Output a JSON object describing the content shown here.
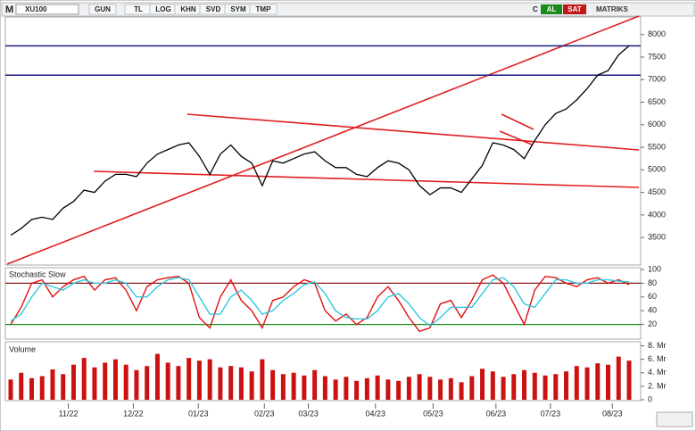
{
  "toolbar": {
    "logo": "M",
    "symbol": "XU100",
    "buttons": [
      "GUN",
      "TL",
      "LOG",
      "KHN",
      "SVD",
      "SYM",
      "TMP"
    ],
    "c": "C",
    "buy": "AL",
    "sell": "SAT",
    "brand": "MATRIKS"
  },
  "chart_data": [
    {
      "type": "line",
      "name": "price",
      "color": "#000000",
      "ylim": [
        2890,
        8390
      ],
      "yticks": [
        3500,
        4000,
        4500,
        5000,
        5500,
        6000,
        6500,
        7000,
        7500,
        8000
      ],
      "hlines": [
        7750,
        7100
      ],
      "hline_color": "#1a1a80",
      "series": [
        {
          "color": "#000000",
          "values": [
            3550,
            3700,
            3900,
            3950,
            3900,
            4150,
            4300,
            4550,
            4500,
            4750,
            4900,
            4900,
            4850,
            5150,
            5350,
            5450,
            5550,
            5600,
            5300,
            4900,
            5350,
            5550,
            5300,
            5150,
            4650,
            5200,
            5150,
            5250,
            5350,
            5400,
            5200,
            5050,
            5050,
            4900,
            4850,
            5050,
            5200,
            5150,
            5000,
            4650,
            4450,
            4600,
            4600,
            4500,
            4800,
            5100,
            5600,
            5550,
            5450,
            5250,
            5650,
            6000,
            6250,
            6350,
            6550,
            6800,
            7100,
            7200,
            7550,
            7750
          ]
        }
      ]
    },
    {
      "type": "line",
      "name": "stochastic",
      "title": "Stochastic Slow",
      "ylim": [
        0,
        100
      ],
      "yticks": [
        20,
        40,
        60,
        80,
        100
      ],
      "levels": [
        {
          "value": 80,
          "color": "#8b1a1a"
        },
        {
          "value": 20,
          "color": "#1e8b1e"
        }
      ],
      "series": [
        {
          "color": "#e01010",
          "values": [
            20,
            45,
            80,
            85,
            60,
            75,
            85,
            90,
            70,
            85,
            88,
            70,
            40,
            75,
            85,
            88,
            90,
            80,
            30,
            15,
            60,
            85,
            55,
            40,
            15,
            55,
            60,
            75,
            85,
            80,
            40,
            25,
            35,
            20,
            30,
            60,
            75,
            55,
            30,
            10,
            15,
            50,
            55,
            30,
            55,
            85,
            92,
            80,
            50,
            20,
            70,
            90,
            88,
            80,
            75,
            85,
            88,
            80,
            85,
            78
          ]
        },
        {
          "color": "#30c8e0",
          "values": [
            25,
            35,
            60,
            80,
            75,
            70,
            80,
            85,
            80,
            80,
            85,
            80,
            60,
            60,
            75,
            85,
            88,
            85,
            60,
            35,
            35,
            60,
            70,
            55,
            35,
            40,
            55,
            65,
            78,
            82,
            65,
            40,
            30,
            28,
            28,
            40,
            60,
            65,
            50,
            30,
            18,
            30,
            45,
            45,
            45,
            65,
            85,
            88,
            75,
            50,
            45,
            65,
            85,
            85,
            80,
            80,
            85,
            85,
            83,
            82
          ]
        }
      ]
    },
    {
      "type": "bar",
      "name": "volume",
      "title": "Volume",
      "color": "#cc1111",
      "ylim": [
        0,
        8.2
      ],
      "yticks": [
        0,
        {
          "value": 2,
          "label": "2. Mr"
        },
        {
          "value": 4,
          "label": "4. Mr"
        },
        {
          "value": 6,
          "label": "6. Mr"
        },
        {
          "value": 8,
          "label": "8. Mr"
        }
      ],
      "values": [
        3.0,
        4.0,
        3.2,
        3.5,
        4.5,
        3.8,
        5.2,
        6.2,
        4.8,
        5.5,
        6.0,
        5.2,
        4.4,
        5.0,
        6.8,
        5.5,
        5.0,
        6.2,
        5.8,
        6.0,
        4.8,
        5.0,
        4.8,
        4.2,
        6.0,
        4.4,
        3.8,
        4.0,
        3.6,
        4.4,
        3.5,
        3.0,
        3.4,
        2.8,
        3.2,
        3.6,
        3.0,
        2.8,
        3.4,
        3.8,
        3.4,
        3.0,
        3.2,
        2.6,
        3.5,
        4.6,
        4.2,
        3.4,
        3.8,
        4.4,
        4.0,
        3.6,
        3.8,
        4.2,
        5.0,
        4.8,
        5.4,
        5.2,
        6.4,
        5.8
      ],
      "xlim": [
        0,
        59
      ],
      "xticks": [
        {
          "value": 5.5,
          "label": "11/22"
        },
        {
          "value": 11.7,
          "label": "12/22"
        },
        {
          "value": 17.9,
          "label": "01/23"
        },
        {
          "value": 24.2,
          "label": "02/23"
        },
        {
          "value": 28.4,
          "label": "03/23"
        },
        {
          "value": 34.8,
          "label": "04/23"
        },
        {
          "value": 40.3,
          "label": "05/23"
        },
        {
          "value": 46.3,
          "label": "06/23"
        },
        {
          "value": 51.5,
          "label": "07/23"
        },
        {
          "value": 57.4,
          "label": "08/23"
        }
      ]
    }
  ]
}
